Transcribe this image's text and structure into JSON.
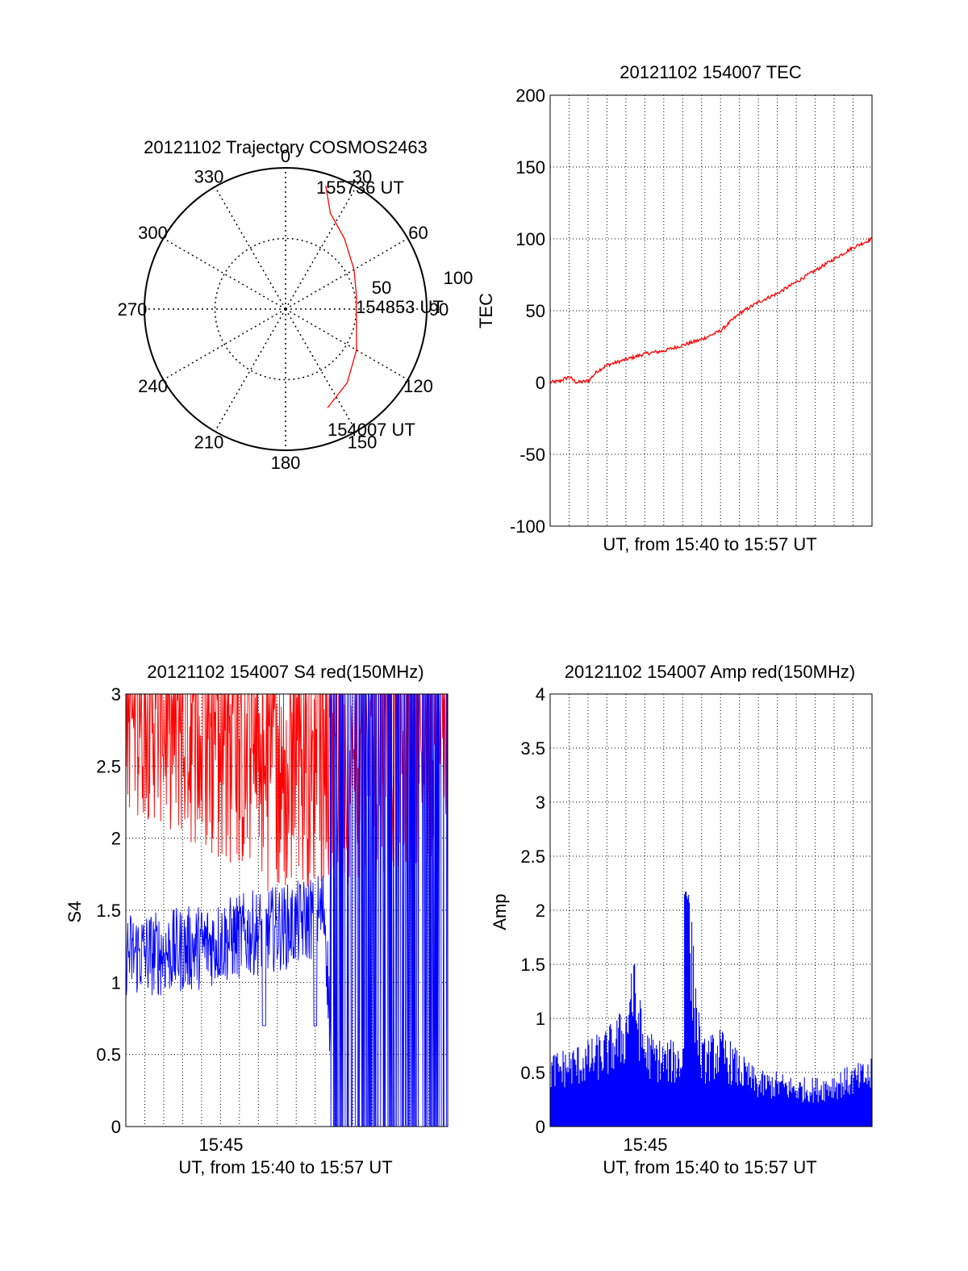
{
  "chart_data": [
    {
      "type": "polar",
      "title": "20121102 Trajectory COSMOS2463",
      "angle_labels": [
        "0",
        "30",
        "60",
        "90",
        "120",
        "150",
        "180",
        "210",
        "240",
        "270",
        "300",
        "330"
      ],
      "radial_labels": [
        "50",
        "100"
      ],
      "rlim": [
        0,
        100
      ],
      "trajectory_color": "#ff0000",
      "trajectory": [
        {
          "az": 157,
          "r": 76
        },
        {
          "az": 140,
          "r": 68
        },
        {
          "az": 120,
          "r": 58
        },
        {
          "az": 100,
          "r": 51
        },
        {
          "az": 90,
          "r": 50
        },
        {
          "az": 80,
          "r": 51
        },
        {
          "az": 60,
          "r": 56
        },
        {
          "az": 40,
          "r": 65
        },
        {
          "az": 25,
          "r": 75
        },
        {
          "az": 18,
          "r": 92
        }
      ],
      "annotations": [
        {
          "text": "155736 UT",
          "az": 18,
          "r": 92
        },
        {
          "text": "154853 UT",
          "az": 90,
          "r": 50
        },
        {
          "text": "154007 UT",
          "az": 157,
          "r": 76
        }
      ]
    },
    {
      "type": "line",
      "title": "20121102 154007 TEC",
      "ylabel": "TEC",
      "xlabel": "UT, from 15:40 to 15:57 UT",
      "ylim": [
        -100,
        200
      ],
      "yticks": [
        "200",
        "150",
        "100",
        "50",
        "0",
        "-50",
        "-100"
      ],
      "xlim": [
        0,
        17
      ],
      "grid": true,
      "series": [
        {
          "color": "#ff0000",
          "x": [
            0,
            0.5,
            1.0,
            1.4,
            2.0,
            2.5,
            3.0,
            4.0,
            5.0,
            6.0,
            7.0,
            8.0,
            9.0,
            10.0,
            11.0,
            12.0,
            13.0,
            14.0,
            15.0,
            16.0,
            17.0
          ],
          "y": [
            0,
            1,
            4,
            0,
            1,
            8,
            12,
            16,
            20,
            22,
            26,
            30,
            36,
            48,
            56,
            62,
            70,
            78,
            86,
            94,
            100
          ]
        }
      ]
    },
    {
      "type": "line",
      "title": "20121102 154007 S4 red(150MHz)",
      "ylabel": "S4",
      "xlabel": "UT, from 15:40 to 15:57 UT",
      "xtick_label": "15:45",
      "ylim": [
        0,
        3
      ],
      "yticks": [
        "3",
        "2.5",
        "2",
        "1.5",
        "1",
        "0.5",
        "0"
      ],
      "xlim": [
        0,
        17
      ],
      "grid": true,
      "series": [
        {
          "color": "#ff0000",
          "x": [
            0,
            2,
            4,
            6,
            8,
            10,
            12,
            14,
            17
          ],
          "y": [
            2.6,
            2.5,
            2.3,
            2.2,
            2.0,
            2.1,
            2.1,
            2.2,
            2.3
          ]
        },
        {
          "color": "#0000ff",
          "x": [
            0,
            2,
            4,
            5.5,
            7,
            9,
            10.5,
            11,
            13,
            15,
            17
          ],
          "y": [
            1.2,
            1.2,
            1.25,
            1.3,
            1.35,
            1.4,
            1.5,
            0.1,
            0.1,
            0.1,
            0.1
          ]
        }
      ]
    },
    {
      "type": "line",
      "title": "20121102 154007 Amp red(150MHz)",
      "ylabel": "Amp",
      "xlabel": "UT, from 15:40 to 15:57 UT",
      "xtick_label": "15:45",
      "ylim": [
        0,
        4
      ],
      "yticks": [
        "4",
        "3.5",
        "3",
        "2.5",
        "2",
        "1.5",
        "1",
        "0.5",
        "0"
      ],
      "xlim": [
        0,
        17
      ],
      "grid": true,
      "series": [
        {
          "color": "#0000ff",
          "x": [
            0,
            2,
            3,
            4,
            4.3,
            5,
            6,
            7,
            7.2,
            8,
            9,
            10,
            11,
            12,
            13,
            14,
            15,
            16,
            17
          ],
          "y": [
            0.6,
            0.7,
            0.8,
            1.0,
            1.5,
            0.8,
            0.7,
            0.7,
            2.2,
            0.7,
            0.8,
            0.6,
            0.45,
            0.45,
            0.4,
            0.4,
            0.45,
            0.5,
            0.55
          ]
        }
      ]
    }
  ]
}
